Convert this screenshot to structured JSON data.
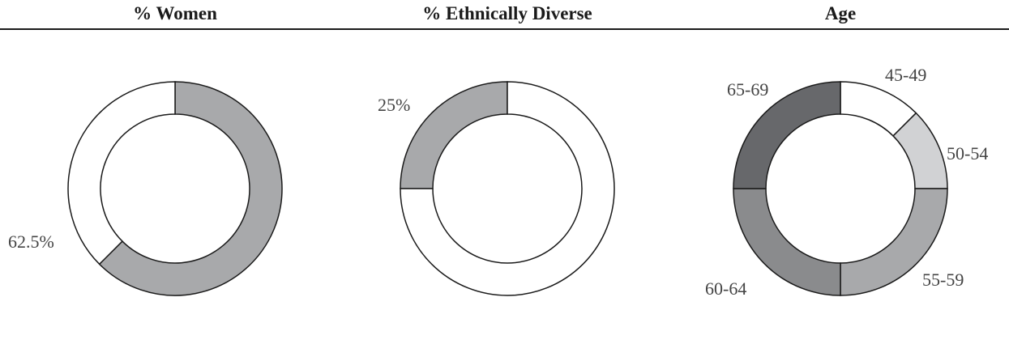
{
  "headers": {
    "women": "% Women",
    "ethnic": "% Ethnically Diverse",
    "age": "Age"
  },
  "chart_data": [
    {
      "type": "pie",
      "variant": "donut",
      "title": "% Women",
      "slices": [
        {
          "label": "62.5%",
          "value": 62.5,
          "color": "#a8a9ab",
          "show_label": true
        },
        {
          "label": "",
          "value": 37.5,
          "color": "#ffffff",
          "show_label": false
        }
      ]
    },
    {
      "type": "pie",
      "variant": "donut",
      "title": "% Ethnically Diverse",
      "slices": [
        {
          "label": "25%",
          "value": 25,
          "color": "#a8a9ab",
          "show_label": true
        },
        {
          "label": "",
          "value": 75,
          "color": "#ffffff",
          "show_label": false
        }
      ]
    },
    {
      "type": "pie",
      "variant": "donut",
      "title": "Age",
      "slices": [
        {
          "label": "45-49",
          "value": 12.5,
          "color": "#ffffff",
          "show_label": true
        },
        {
          "label": "50-54",
          "value": 12.5,
          "color": "#d1d2d4",
          "show_label": true
        },
        {
          "label": "55-59",
          "value": 25,
          "color": "#a8a9ab",
          "show_label": true
        },
        {
          "label": "60-64",
          "value": 25,
          "color": "#8a8b8d",
          "show_label": true
        },
        {
          "label": "65-69",
          "value": 25,
          "color": "#67686b",
          "show_label": true
        }
      ]
    }
  ]
}
